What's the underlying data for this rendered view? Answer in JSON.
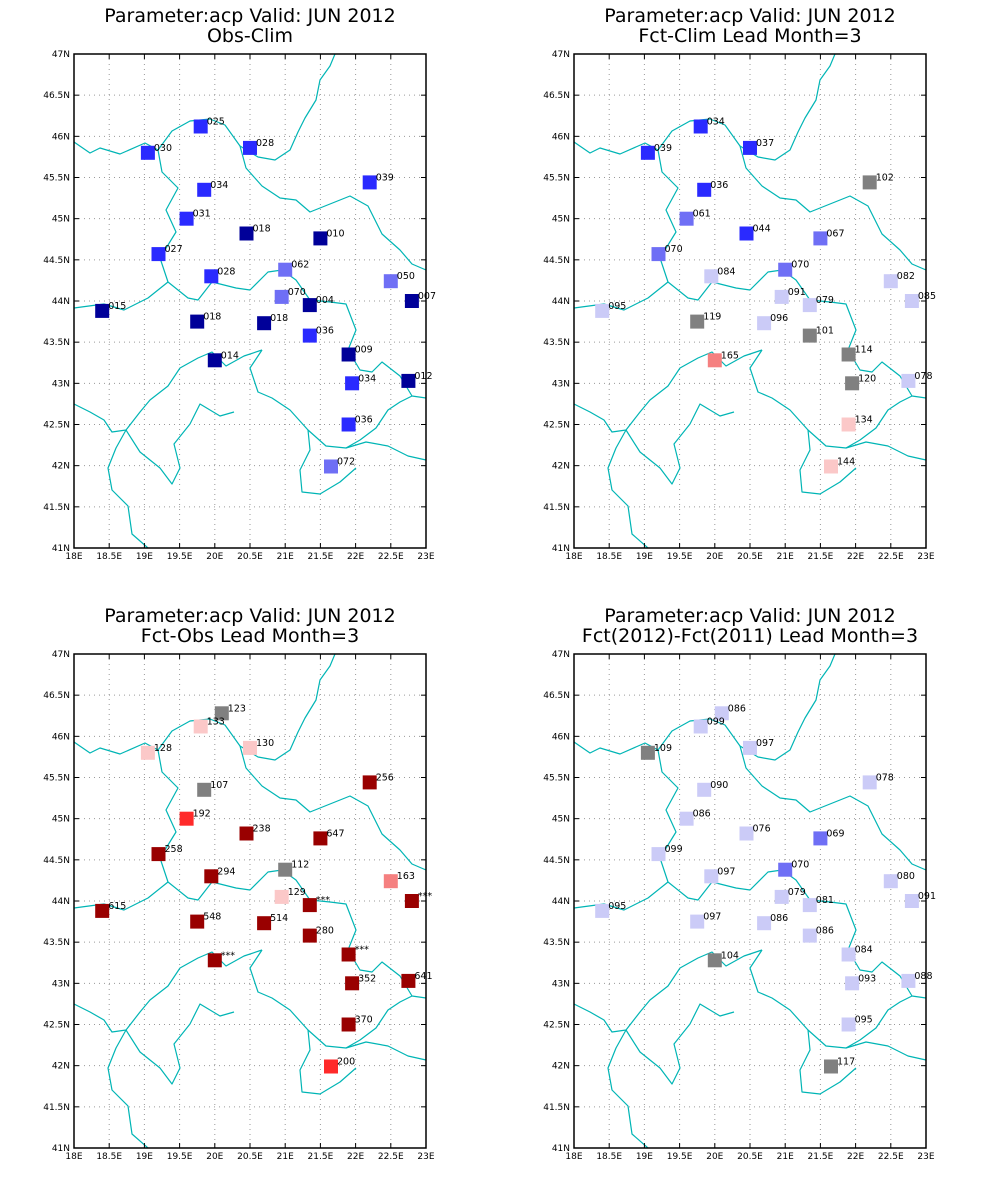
{
  "grid_lon": [
    "18E",
    "18.5E",
    "19E",
    "19.5E",
    "20E",
    "20.5E",
    "21E",
    "21.5E",
    "22E",
    "22.5E",
    "23E"
  ],
  "grid_lat": [
    "47N",
    "46.5N",
    "46N",
    "45.5N",
    "45N",
    "44.5N",
    "44N",
    "43.5N",
    "43N",
    "42.5N",
    "42N",
    "41.5N",
    "41N"
  ],
  "colors": {
    "dark_blue": "#000099",
    "blue": "#2a2aff",
    "mid_blue": "#6f6ff5",
    "light_blue": "#cbcbf7",
    "grey": "#808080",
    "light_pink": "#fbc8c8",
    "pink": "#f58080",
    "red": "#ff2a2a",
    "dark_red": "#990000",
    "coast": "#00b5b5"
  },
  "panels": [
    {
      "title": "Parameter:acp Valid: JUN 2012",
      "subtitle": "Obs-Clim",
      "stations": [
        {
          "lon": 19.8,
          "lat": 46.12,
          "label": "025",
          "color": "blue"
        },
        {
          "lon": 19.05,
          "lat": 45.8,
          "label": "030",
          "color": "blue"
        },
        {
          "lon": 20.5,
          "lat": 45.86,
          "label": "028",
          "color": "blue"
        },
        {
          "lon": 19.85,
          "lat": 45.35,
          "label": "034",
          "color": "blue"
        },
        {
          "lon": 22.2,
          "lat": 45.44,
          "label": "039",
          "color": "blue"
        },
        {
          "lon": 19.6,
          "lat": 45.0,
          "label": "031",
          "color": "blue"
        },
        {
          "lon": 20.45,
          "lat": 44.82,
          "label": "018",
          "color": "dark_blue"
        },
        {
          "lon": 21.5,
          "lat": 44.76,
          "label": "010",
          "color": "dark_blue"
        },
        {
          "lon": 19.2,
          "lat": 44.57,
          "label": "027",
          "color": "blue"
        },
        {
          "lon": 19.95,
          "lat": 44.3,
          "label": "028",
          "color": "blue"
        },
        {
          "lon": 21.0,
          "lat": 44.38,
          "label": "062",
          "color": "mid_blue"
        },
        {
          "lon": 22.5,
          "lat": 44.24,
          "label": "050",
          "color": "mid_blue"
        },
        {
          "lon": 20.95,
          "lat": 44.05,
          "label": "070",
          "color": "mid_blue"
        },
        {
          "lon": 21.35,
          "lat": 43.95,
          "label": "004",
          "color": "dark_blue"
        },
        {
          "lon": 22.8,
          "lat": 44.0,
          "label": "007",
          "color": "dark_blue"
        },
        {
          "lon": 18.4,
          "lat": 43.88,
          "label": "015",
          "color": "dark_blue"
        },
        {
          "lon": 19.75,
          "lat": 43.75,
          "label": "018",
          "color": "dark_blue"
        },
        {
          "lon": 20.7,
          "lat": 43.73,
          "label": "018",
          "color": "dark_blue"
        },
        {
          "lon": 21.35,
          "lat": 43.58,
          "label": "036",
          "color": "blue"
        },
        {
          "lon": 21.9,
          "lat": 43.35,
          "label": "009",
          "color": "dark_blue"
        },
        {
          "lon": 20.0,
          "lat": 43.28,
          "label": "014",
          "color": "dark_blue"
        },
        {
          "lon": 21.95,
          "lat": 43.0,
          "label": "034",
          "color": "blue"
        },
        {
          "lon": 22.75,
          "lat": 43.03,
          "label": "012",
          "color": "dark_blue"
        },
        {
          "lon": 21.9,
          "lat": 42.5,
          "label": "036",
          "color": "blue"
        },
        {
          "lon": 21.65,
          "lat": 41.99,
          "label": "072",
          "color": "mid_blue"
        }
      ]
    },
    {
      "title": "Parameter:acp Valid: JUN 2012",
      "subtitle": "Fct-Clim Lead Month=3",
      "stations": [
        {
          "lon": 19.8,
          "lat": 46.12,
          "label": "034",
          "color": "blue"
        },
        {
          "lon": 19.05,
          "lat": 45.8,
          "label": "039",
          "color": "blue"
        },
        {
          "lon": 20.5,
          "lat": 45.86,
          "label": "037",
          "color": "blue"
        },
        {
          "lon": 19.85,
          "lat": 45.35,
          "label": "036",
          "color": "blue"
        },
        {
          "lon": 22.2,
          "lat": 45.44,
          "label": "102",
          "color": "grey"
        },
        {
          "lon": 19.6,
          "lat": 45.0,
          "label": "061",
          "color": "mid_blue"
        },
        {
          "lon": 20.45,
          "lat": 44.82,
          "label": "044",
          "color": "blue"
        },
        {
          "lon": 21.5,
          "lat": 44.76,
          "label": "067",
          "color": "mid_blue"
        },
        {
          "lon": 19.2,
          "lat": 44.57,
          "label": "070",
          "color": "mid_blue"
        },
        {
          "lon": 19.95,
          "lat": 44.3,
          "label": "084",
          "color": "light_blue"
        },
        {
          "lon": 21.0,
          "lat": 44.38,
          "label": "070",
          "color": "mid_blue"
        },
        {
          "lon": 22.5,
          "lat": 44.24,
          "label": "082",
          "color": "light_blue"
        },
        {
          "lon": 20.95,
          "lat": 44.05,
          "label": "091",
          "color": "light_blue"
        },
        {
          "lon": 21.35,
          "lat": 43.95,
          "label": "079",
          "color": "light_blue"
        },
        {
          "lon": 22.8,
          "lat": 44.0,
          "label": "085",
          "color": "light_blue"
        },
        {
          "lon": 18.4,
          "lat": 43.88,
          "label": "095",
          "color": "light_blue"
        },
        {
          "lon": 19.75,
          "lat": 43.75,
          "label": "119",
          "color": "grey"
        },
        {
          "lon": 20.7,
          "lat": 43.73,
          "label": "096",
          "color": "light_blue"
        },
        {
          "lon": 21.35,
          "lat": 43.58,
          "label": "101",
          "color": "grey"
        },
        {
          "lon": 21.9,
          "lat": 43.35,
          "label": "114",
          "color": "grey"
        },
        {
          "lon": 20.0,
          "lat": 43.28,
          "label": "165",
          "color": "pink"
        },
        {
          "lon": 21.95,
          "lat": 43.0,
          "label": "120",
          "color": "grey"
        },
        {
          "lon": 22.75,
          "lat": 43.03,
          "label": "078",
          "color": "light_blue"
        },
        {
          "lon": 21.9,
          "lat": 42.5,
          "label": "134",
          "color": "light_pink"
        },
        {
          "lon": 21.65,
          "lat": 41.99,
          "label": "144",
          "color": "light_pink"
        }
      ]
    },
    {
      "title": "Parameter:acp Valid: JUN 2012",
      "subtitle": "Fct-Obs Lead Month=3",
      "stations": [
        {
          "lon": 20.1,
          "lat": 46.28,
          "label": "123",
          "color": "grey"
        },
        {
          "lon": 19.8,
          "lat": 46.12,
          "label": "133",
          "color": "light_pink"
        },
        {
          "lon": 19.05,
          "lat": 45.8,
          "label": "128",
          "color": "light_pink"
        },
        {
          "lon": 20.5,
          "lat": 45.86,
          "label": "130",
          "color": "light_pink"
        },
        {
          "lon": 19.85,
          "lat": 45.35,
          "label": "107",
          "color": "grey"
        },
        {
          "lon": 22.2,
          "lat": 45.44,
          "label": "256",
          "color": "dark_red"
        },
        {
          "lon": 19.6,
          "lat": 45.0,
          "label": "192",
          "color": "red"
        },
        {
          "lon": 20.45,
          "lat": 44.82,
          "label": "238",
          "color": "dark_red"
        },
        {
          "lon": 21.5,
          "lat": 44.76,
          "label": "647",
          "color": "dark_red"
        },
        {
          "lon": 19.2,
          "lat": 44.57,
          "label": "258",
          "color": "dark_red"
        },
        {
          "lon": 19.95,
          "lat": 44.3,
          "label": "294",
          "color": "dark_red"
        },
        {
          "lon": 21.0,
          "lat": 44.38,
          "label": "112",
          "color": "grey"
        },
        {
          "lon": 22.5,
          "lat": 44.24,
          "label": "163",
          "color": "pink"
        },
        {
          "lon": 20.95,
          "lat": 44.05,
          "label": "129",
          "color": "light_pink"
        },
        {
          "lon": 21.35,
          "lat": 43.95,
          "label": "***",
          "color": "dark_red"
        },
        {
          "lon": 22.8,
          "lat": 44.0,
          "label": "***",
          "color": "dark_red"
        },
        {
          "lon": 18.4,
          "lat": 43.88,
          "label": "615",
          "color": "dark_red"
        },
        {
          "lon": 19.75,
          "lat": 43.75,
          "label": "548",
          "color": "dark_red"
        },
        {
          "lon": 20.7,
          "lat": 43.73,
          "label": "514",
          "color": "dark_red"
        },
        {
          "lon": 21.35,
          "lat": 43.58,
          "label": "280",
          "color": "dark_red"
        },
        {
          "lon": 21.9,
          "lat": 43.35,
          "label": "***",
          "color": "dark_red"
        },
        {
          "lon": 20.0,
          "lat": 43.28,
          "label": "***",
          "color": "dark_red"
        },
        {
          "lon": 21.95,
          "lat": 43.0,
          "label": "352",
          "color": "dark_red"
        },
        {
          "lon": 22.75,
          "lat": 43.03,
          "label": "641",
          "color": "dark_red"
        },
        {
          "lon": 21.9,
          "lat": 42.5,
          "label": "370",
          "color": "dark_red"
        },
        {
          "lon": 21.65,
          "lat": 41.99,
          "label": "200",
          "color": "red"
        }
      ]
    },
    {
      "title": "Parameter:acp Valid: JUN 2012",
      "subtitle": "Fct(2012)-Fct(2011) Lead Month=3",
      "stations": [
        {
          "lon": 20.1,
          "lat": 46.28,
          "label": "086",
          "color": "light_blue"
        },
        {
          "lon": 19.8,
          "lat": 46.12,
          "label": "099",
          "color": "light_blue"
        },
        {
          "lon": 19.05,
          "lat": 45.8,
          "label": "109",
          "color": "grey"
        },
        {
          "lon": 20.5,
          "lat": 45.86,
          "label": "097",
          "color": "light_blue"
        },
        {
          "lon": 19.85,
          "lat": 45.35,
          "label": "090",
          "color": "light_blue"
        },
        {
          "lon": 22.2,
          "lat": 45.44,
          "label": "078",
          "color": "light_blue"
        },
        {
          "lon": 19.6,
          "lat": 45.0,
          "label": "086",
          "color": "light_blue"
        },
        {
          "lon": 20.45,
          "lat": 44.82,
          "label": "076",
          "color": "light_blue"
        },
        {
          "lon": 21.5,
          "lat": 44.76,
          "label": "069",
          "color": "mid_blue"
        },
        {
          "lon": 19.2,
          "lat": 44.57,
          "label": "099",
          "color": "light_blue"
        },
        {
          "lon": 19.95,
          "lat": 44.3,
          "label": "097",
          "color": "light_blue"
        },
        {
          "lon": 21.0,
          "lat": 44.38,
          "label": "070",
          "color": "mid_blue"
        },
        {
          "lon": 22.5,
          "lat": 44.24,
          "label": "080",
          "color": "light_blue"
        },
        {
          "lon": 20.95,
          "lat": 44.05,
          "label": "079",
          "color": "light_blue"
        },
        {
          "lon": 21.35,
          "lat": 43.95,
          "label": "081",
          "color": "light_blue"
        },
        {
          "lon": 22.8,
          "lat": 44.0,
          "label": "091",
          "color": "light_blue"
        },
        {
          "lon": 18.4,
          "lat": 43.88,
          "label": "095",
          "color": "light_blue"
        },
        {
          "lon": 19.75,
          "lat": 43.75,
          "label": "097",
          "color": "light_blue"
        },
        {
          "lon": 20.7,
          "lat": 43.73,
          "label": "086",
          "color": "light_blue"
        },
        {
          "lon": 21.35,
          "lat": 43.58,
          "label": "086",
          "color": "light_blue"
        },
        {
          "lon": 21.9,
          "lat": 43.35,
          "label": "084",
          "color": "light_blue"
        },
        {
          "lon": 20.0,
          "lat": 43.28,
          "label": "104",
          "color": "grey"
        },
        {
          "lon": 21.95,
          "lat": 43.0,
          "label": "093",
          "color": "light_blue"
        },
        {
          "lon": 22.75,
          "lat": 43.03,
          "label": "088",
          "color": "light_blue"
        },
        {
          "lon": 21.9,
          "lat": 42.5,
          "label": "095",
          "color": "light_blue"
        },
        {
          "lon": 21.65,
          "lat": 41.99,
          "label": "117",
          "color": "grey"
        }
      ]
    }
  ]
}
